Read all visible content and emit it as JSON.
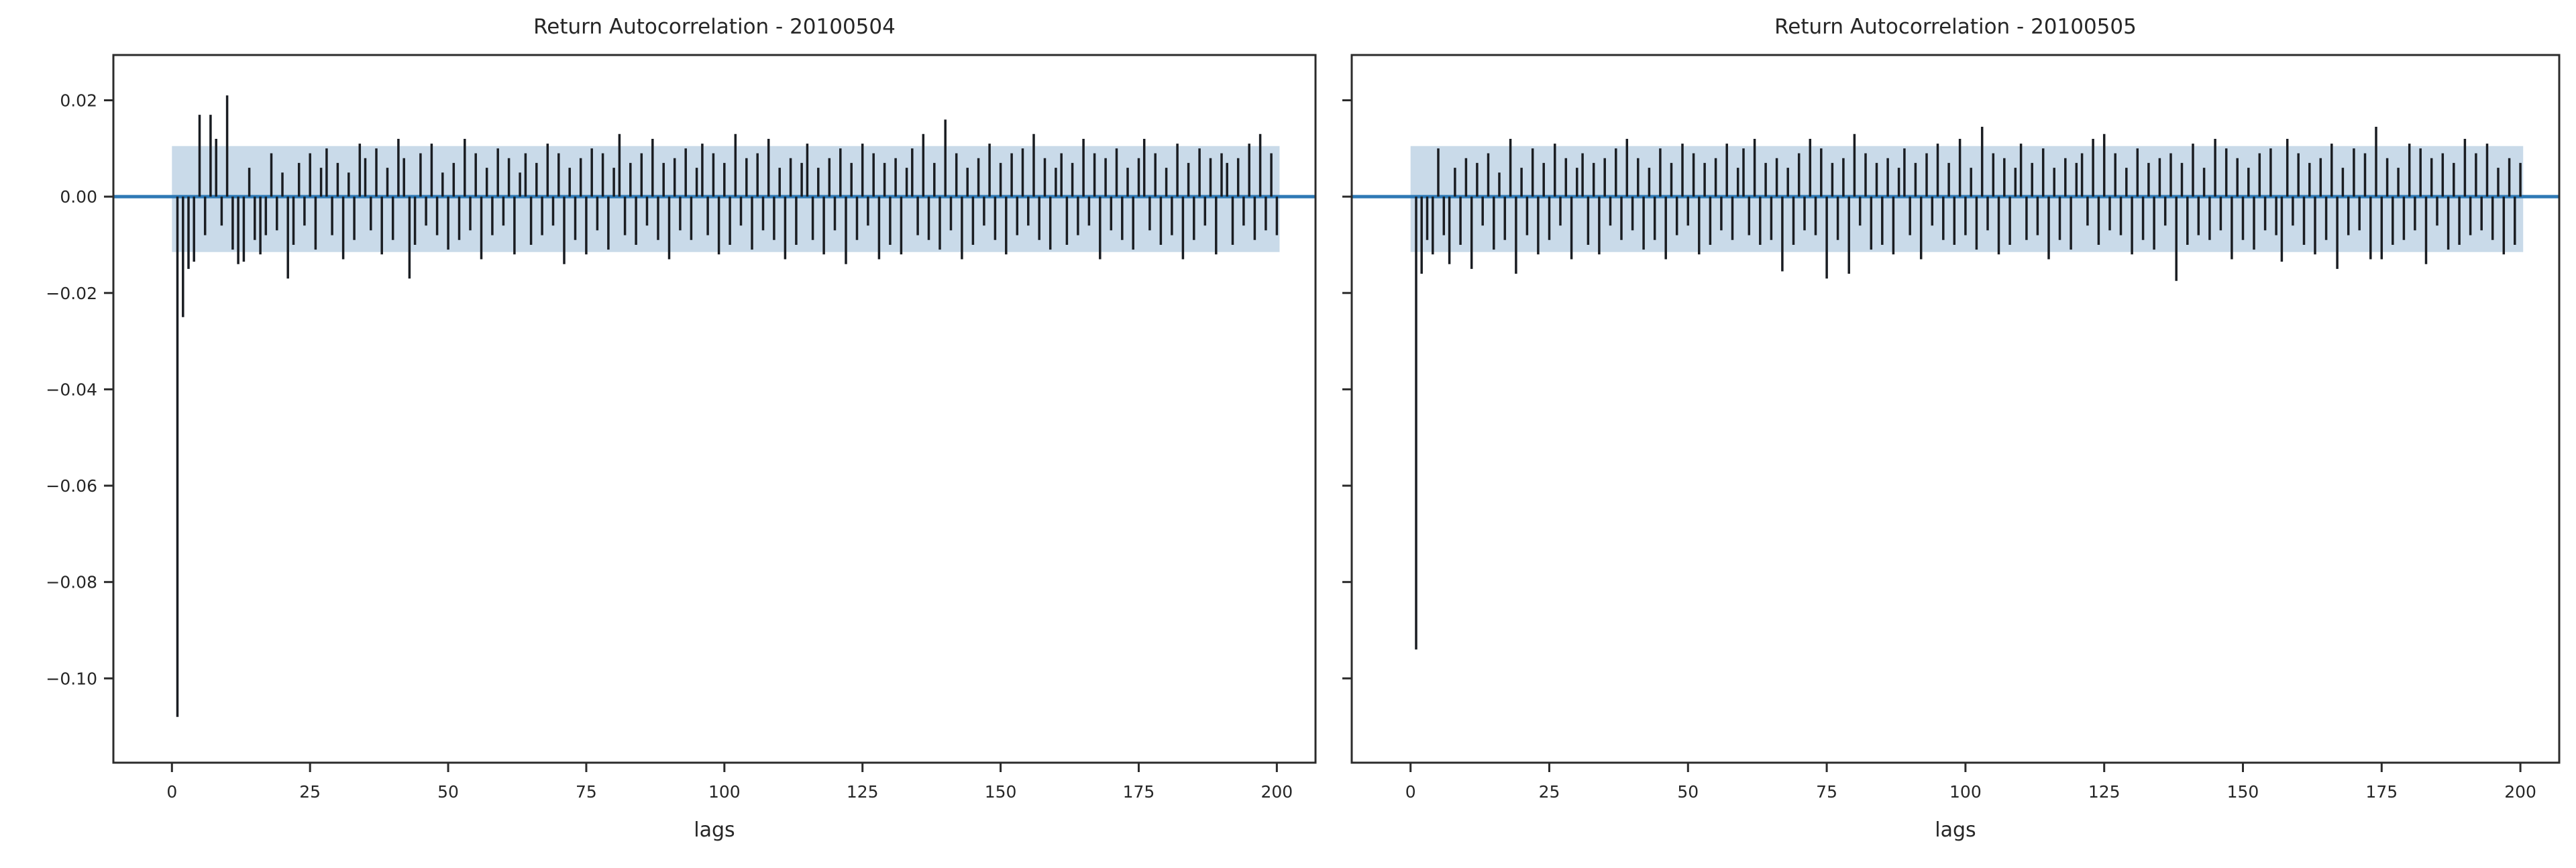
{
  "figure": {
    "background": "#ffffff"
  },
  "colors": {
    "band": "#c9dae9",
    "zero_line": "#2e79b5",
    "stem": "#1a1d22",
    "spine": "#2b2b2b",
    "tick": "#2b2b2b",
    "text": "#262626"
  },
  "chart_data": [
    {
      "type": "stem",
      "title": "Return Autocorrelation - 20100504",
      "xlabel": "lags",
      "ylabel": "",
      "xlim": [
        -10.6,
        207.0
      ],
      "ylim": [
        -0.1175,
        0.0294
      ],
      "xticks": [
        0,
        25,
        50,
        75,
        100,
        125,
        150,
        175,
        200
      ],
      "xtick_labels": [
        "0",
        "25",
        "50",
        "75",
        "100",
        "125",
        "150",
        "175",
        "200"
      ],
      "yticks": [
        0.02,
        0.0,
        -0.02,
        -0.04,
        -0.06,
        -0.08,
        -0.1
      ],
      "ytick_labels": [
        "0.02",
        "0.00",
        "−0.02",
        "−0.04",
        "−0.06",
        "−0.08",
        "−0.10"
      ],
      "ytick_labels_visible": true,
      "grid": false,
      "legend": null,
      "zero_line": 0.0,
      "confidence_band": {
        "low": -0.0115,
        "high": 0.0105,
        "x_start": 0.0,
        "x_end": 200.5
      },
      "lags_start": 1,
      "values": [
        -0.108,
        -0.025,
        -0.015,
        -0.0135,
        0.017,
        -0.008,
        0.017,
        0.012,
        -0.006,
        0.021,
        -0.011,
        -0.014,
        -0.0135,
        0.006,
        -0.009,
        -0.012,
        -0.008,
        0.009,
        -0.007,
        0.005,
        -0.017,
        -0.01,
        0.007,
        -0.006,
        0.009,
        -0.011,
        0.006,
        0.01,
        -0.008,
        0.007,
        -0.013,
        0.005,
        -0.009,
        0.011,
        0.008,
        -0.007,
        0.01,
        -0.012,
        0.006,
        -0.009,
        0.012,
        0.008,
        -0.017,
        -0.01,
        0.009,
        -0.006,
        0.011,
        -0.008,
        0.005,
        -0.011,
        0.007,
        -0.009,
        0.012,
        -0.007,
        0.009,
        -0.013,
        0.006,
        -0.008,
        0.01,
        -0.006,
        0.008,
        -0.012,
        0.005,
        0.009,
        -0.01,
        0.007,
        -0.008,
        0.011,
        -0.006,
        0.009,
        -0.014,
        0.006,
        -0.009,
        0.008,
        -0.012,
        0.01,
        -0.007,
        0.009,
        -0.011,
        0.006,
        0.013,
        -0.008,
        0.007,
        -0.01,
        0.009,
        -0.006,
        0.012,
        -0.009,
        0.007,
        -0.013,
        0.008,
        -0.007,
        0.01,
        -0.009,
        0.006,
        0.011,
        -0.008,
        0.009,
        -0.012,
        0.007,
        -0.01,
        0.013,
        -0.006,
        0.008,
        -0.011,
        0.009,
        -0.007,
        0.012,
        -0.009,
        0.006,
        -0.013,
        0.008,
        -0.01,
        0.007,
        0.011,
        -0.009,
        0.006,
        -0.012,
        0.008,
        -0.007,
        0.01,
        -0.014,
        0.007,
        -0.009,
        0.011,
        -0.006,
        0.009,
        -0.013,
        0.007,
        -0.01,
        0.008,
        -0.012,
        0.006,
        0.01,
        -0.008,
        0.013,
        -0.009,
        0.007,
        -0.011,
        0.016,
        -0.007,
        0.009,
        -0.013,
        0.006,
        -0.01,
        0.008,
        -0.006,
        0.011,
        -0.009,
        0.007,
        -0.012,
        0.009,
        -0.008,
        0.01,
        -0.006,
        0.013,
        -0.009,
        0.008,
        -0.011,
        0.006,
        0.009,
        -0.01,
        0.007,
        -0.008,
        0.012,
        -0.006,
        0.009,
        -0.013,
        0.008,
        -0.007,
        0.01,
        -0.009,
        0.006,
        -0.011,
        0.008,
        0.012,
        -0.007,
        0.009,
        -0.01,
        0.006,
        -0.008,
        0.011,
        -0.013,
        0.007,
        -0.009,
        0.01,
        -0.006,
        0.008,
        -0.012,
        0.009,
        0.007,
        -0.01,
        0.008,
        -0.006,
        0.011,
        -0.009,
        0.013,
        -0.007,
        0.009,
        -0.008
      ]
    },
    {
      "type": "stem",
      "title": "Return Autocorrelation - 20100505",
      "xlabel": "lags",
      "ylabel": "",
      "xlim": [
        -10.6,
        207.0
      ],
      "ylim": [
        -0.1175,
        0.0294
      ],
      "xticks": [
        0,
        25,
        50,
        75,
        100,
        125,
        150,
        175,
        200
      ],
      "xtick_labels": [
        "0",
        "25",
        "50",
        "75",
        "100",
        "125",
        "150",
        "175",
        "200"
      ],
      "yticks": [
        0.02,
        0.0,
        -0.02,
        -0.04,
        -0.06,
        -0.08,
        -0.1
      ],
      "ytick_labels": [
        "0.02",
        "0.00",
        "−0.02",
        "−0.04",
        "−0.06",
        "−0.08",
        "−0.10"
      ],
      "ytick_labels_visible": false,
      "grid": false,
      "legend": null,
      "zero_line": 0.0,
      "confidence_band": {
        "low": -0.0115,
        "high": 0.0105,
        "x_start": 0.0,
        "x_end": 200.5
      },
      "lags_start": 1,
      "values": [
        -0.094,
        -0.016,
        -0.009,
        -0.012,
        0.01,
        -0.008,
        -0.014,
        0.006,
        -0.01,
        0.008,
        -0.015,
        0.007,
        -0.006,
        0.009,
        -0.011,
        0.005,
        -0.009,
        0.012,
        -0.016,
        0.006,
        -0.008,
        0.01,
        -0.012,
        0.007,
        -0.009,
        0.011,
        -0.006,
        0.008,
        -0.013,
        0.006,
        0.009,
        -0.01,
        0.007,
        -0.012,
        0.008,
        -0.006,
        0.01,
        -0.009,
        0.012,
        -0.007,
        0.008,
        -0.011,
        0.006,
        -0.009,
        0.01,
        -0.013,
        0.007,
        -0.008,
        0.011,
        -0.006,
        0.009,
        -0.012,
        0.007,
        -0.01,
        0.008,
        -0.007,
        0.011,
        -0.009,
        0.006,
        0.01,
        -0.008,
        0.012,
        -0.01,
        0.007,
        -0.009,
        0.008,
        -0.0155,
        0.006,
        -0.01,
        0.009,
        -0.007,
        0.012,
        -0.008,
        0.01,
        -0.017,
        0.007,
        -0.009,
        0.008,
        -0.016,
        0.013,
        -0.006,
        0.009,
        -0.011,
        0.007,
        -0.01,
        0.008,
        -0.012,
        0.006,
        0.01,
        -0.008,
        0.007,
        -0.013,
        0.009,
        -0.006,
        0.011,
        -0.009,
        0.007,
        -0.01,
        0.012,
        -0.008,
        0.006,
        -0.011,
        0.0145,
        -0.007,
        0.009,
        -0.012,
        0.008,
        -0.01,
        0.006,
        0.011,
        -0.009,
        0.007,
        -0.008,
        0.01,
        -0.013,
        0.006,
        -0.009,
        0.008,
        -0.011,
        0.007,
        0.009,
        -0.006,
        0.012,
        -0.01,
        0.013,
        -0.007,
        0.009,
        -0.008,
        0.006,
        -0.012,
        0.01,
        -0.009,
        0.007,
        -0.011,
        0.008,
        -0.006,
        0.009,
        -0.0175,
        0.007,
        -0.01,
        0.011,
        -0.008,
        0.006,
        -0.009,
        0.012,
        -0.007,
        0.01,
        -0.013,
        0.008,
        -0.009,
        0.006,
        -0.011,
        0.009,
        -0.007,
        0.01,
        -0.008,
        -0.0135,
        0.012,
        -0.006,
        0.009,
        -0.01,
        0.007,
        -0.012,
        0.008,
        -0.009,
        0.011,
        -0.015,
        0.006,
        -0.008,
        0.01,
        -0.007,
        0.009,
        -0.013,
        0.0145,
        -0.013,
        0.008,
        -0.01,
        0.006,
        -0.009,
        0.011,
        -0.007,
        0.01,
        -0.014,
        0.008,
        -0.006,
        0.009,
        -0.011,
        0.007,
        -0.01,
        0.012,
        -0.008,
        0.009,
        -0.007,
        0.011,
        -0.009,
        0.006,
        -0.012,
        0.008,
        -0.01,
        0.007
      ]
    }
  ]
}
